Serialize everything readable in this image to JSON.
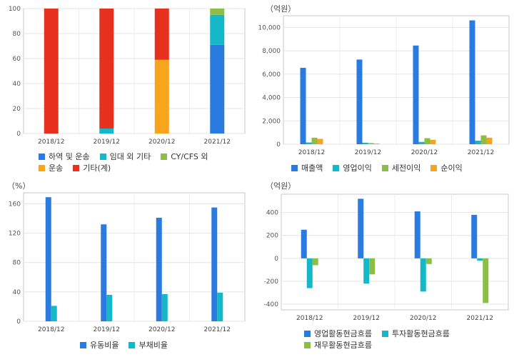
{
  "chart_data": [
    {
      "type": "bar",
      "stacked": true,
      "unit": "",
      "categories": [
        "2018/12",
        "2019/12",
        "2020/12",
        "2021/12"
      ],
      "ylim": [
        0,
        100
      ],
      "yticks": [
        0,
        20,
        40,
        60,
        80,
        100
      ],
      "grid": true,
      "legend_position": "bottom",
      "series": [
        {
          "name": "하역 및 운송",
          "color": "#2a7be0",
          "values": [
            0,
            0,
            0,
            71
          ]
        },
        {
          "name": "임대 외 기타",
          "color": "#14b8c8",
          "values": [
            0,
            4,
            0,
            24
          ]
        },
        {
          "name": "CY/CFS 외",
          "color": "#8cbe46",
          "values": [
            0,
            0,
            0,
            5
          ]
        },
        {
          "name": "운송",
          "color": "#f8a51e",
          "values": [
            0,
            0,
            59,
            0
          ]
        },
        {
          "name": "기타(계)",
          "color": "#e8301e",
          "values": [
            100,
            96,
            41,
            0
          ]
        }
      ]
    },
    {
      "type": "bar",
      "unit": "（억원）",
      "categories": [
        "2018/12",
        "2019/12",
        "2020/12",
        "2021/12"
      ],
      "ylim": [
        0,
        11000
      ],
      "yticks": [
        0,
        2000,
        4000,
        6000,
        8000,
        10000
      ],
      "ytick_labels": [
        "0",
        "2,000",
        "4,000",
        "6,000",
        "8,000",
        "10,000"
      ],
      "grid": true,
      "legend_position": "bottom",
      "series": [
        {
          "name": "매출액",
          "color": "#2a7be0",
          "values": [
            6540,
            7250,
            8450,
            10600
          ]
        },
        {
          "name": "영업이익",
          "color": "#14b8c8",
          "values": [
            150,
            130,
            200,
            300
          ]
        },
        {
          "name": "세전이익",
          "color": "#8cbe46",
          "values": [
            560,
            100,
            520,
            760
          ]
        },
        {
          "name": "순이익",
          "color": "#f8a51e",
          "values": [
            460,
            60,
            380,
            560
          ]
        }
      ]
    },
    {
      "type": "bar",
      "unit": "（%）",
      "categories": [
        "2018/12",
        "2019/12",
        "2020/12",
        "2021/12"
      ],
      "ylim": [
        0,
        175
      ],
      "yticks": [
        0,
        40,
        80,
        120,
        160
      ],
      "grid": true,
      "legend_position": "bottom",
      "series": [
        {
          "name": "유동비율",
          "color": "#2a7be0",
          "values": [
            169,
            132,
            141,
            155
          ]
        },
        {
          "name": "부채비율",
          "color": "#14b8c8",
          "values": [
            21,
            36,
            37,
            39
          ]
        }
      ]
    },
    {
      "type": "bar",
      "unit": "（억원）",
      "categories": [
        "2018/12",
        "2019/12",
        "2020/12",
        "2021/12"
      ],
      "ylim": [
        -450,
        560
      ],
      "yticks": [
        -400,
        -200,
        0,
        200,
        400
      ],
      "grid": true,
      "legend_position": "bottom",
      "series": [
        {
          "name": "영업활동현금흐름",
          "color": "#2a7be0",
          "values": [
            250,
            520,
            410,
            380
          ]
        },
        {
          "name": "투자활동현금흐름",
          "color": "#14b8c8",
          "values": [
            -260,
            -220,
            -290,
            -20
          ]
        },
        {
          "name": "재무활동현금흐름",
          "color": "#8cbe46",
          "values": [
            -60,
            -140,
            -50,
            -390
          ]
        }
      ]
    }
  ]
}
